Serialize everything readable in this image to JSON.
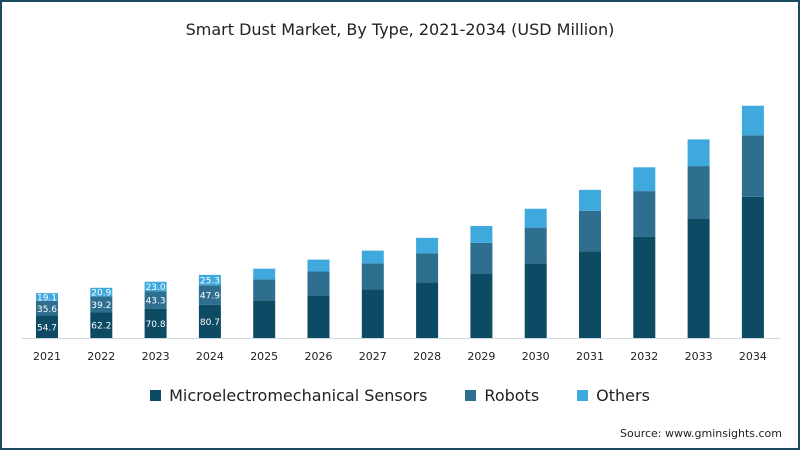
{
  "chart_data": {
    "type": "bar",
    "stacked": true,
    "title": "Smart Dust Market, By Type, 2021-2034 (USD Million)",
    "xlabel": "",
    "ylabel": "",
    "categories": [
      "2021",
      "2022",
      "2023",
      "2024",
      "2025",
      "2026",
      "2027",
      "2028",
      "2029",
      "2030",
      "2031",
      "2032",
      "2033",
      "2034"
    ],
    "series": [
      {
        "name": "Microelectromechanical Sensors",
        "color": "#0d4a63",
        "values": [
          54.7,
          62.2,
          70.8,
          80.7,
          92,
          104,
          119,
          136,
          157,
          182,
          211,
          247,
          290,
          344
        ]
      },
      {
        "name": "Robots",
        "color": "#2e6e8e",
        "values": [
          35.6,
          39.2,
          43.3,
          47.9,
          51,
          58,
          63,
          70,
          75,
          87,
          99,
          111,
          129,
          150
        ]
      },
      {
        "name": "Others",
        "color": "#3fa9de",
        "values": [
          19.1,
          20.9,
          23.0,
          25.3,
          26,
          29,
          31,
          38,
          41,
          46,
          51,
          58,
          65,
          72
        ]
      }
    ],
    "labeled_count": 4,
    "ylim": [
      0,
      580
    ],
    "grid": false,
    "legend": "bottom"
  },
  "source": "Source: www.gminsights.com"
}
